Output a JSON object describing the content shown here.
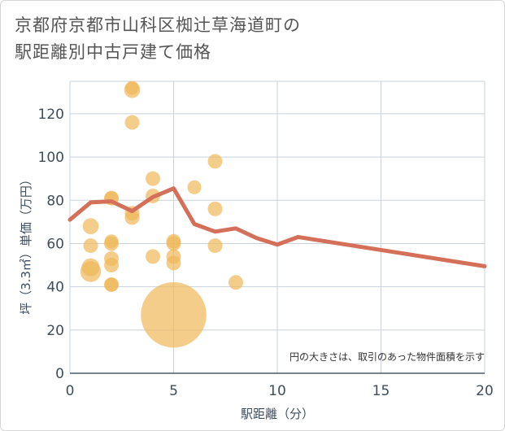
{
  "chart_data": {
    "type": "scatter",
    "title_line1": "京都府京都市山科区椥辻草海道町の",
    "title_line2": "駅距離別中古戸建て価格",
    "xlabel": "駅距離（分）",
    "ylabel": "坪（3.3㎡）単価（万円）",
    "xlim": [
      0,
      20
    ],
    "ylim": [
      0,
      135
    ],
    "xticks": [
      0,
      5,
      10,
      15,
      20
    ],
    "yticks": [
      0,
      20,
      40,
      60,
      80,
      100,
      120
    ],
    "xtick_labels": [
      "0",
      "5",
      "10",
      "15",
      "20"
    ],
    "ytick_labels": [
      "0",
      "20",
      "40",
      "60",
      "80",
      "100",
      "120"
    ],
    "note": "円の大きさは、取引のあった物件面積を示す",
    "scatter_color": "#f0b85a",
    "line_color": "#d4705a",
    "points": [
      {
        "x": 1,
        "y": 47,
        "size": 2
      },
      {
        "x": 1,
        "y": 49,
        "size": 1.5
      },
      {
        "x": 1,
        "y": 59,
        "size": 1
      },
      {
        "x": 1,
        "y": 68,
        "size": 1.2
      },
      {
        "x": 2,
        "y": 41,
        "size": 1
      },
      {
        "x": 2,
        "y": 41,
        "size": 0.9
      },
      {
        "x": 2,
        "y": 50,
        "size": 1
      },
      {
        "x": 2,
        "y": 53,
        "size": 1
      },
      {
        "x": 2,
        "y": 60,
        "size": 1
      },
      {
        "x": 2,
        "y": 61,
        "size": 0.9
      },
      {
        "x": 2,
        "y": 81,
        "size": 1
      },
      {
        "x": 2,
        "y": 81,
        "size": 0.9
      },
      {
        "x": 3,
        "y": 72,
        "size": 1
      },
      {
        "x": 3,
        "y": 74,
        "size": 1
      },
      {
        "x": 3,
        "y": 116,
        "size": 1
      },
      {
        "x": 3,
        "y": 131,
        "size": 1.2
      },
      {
        "x": 3,
        "y": 132,
        "size": 0.9
      },
      {
        "x": 4,
        "y": 54,
        "size": 1
      },
      {
        "x": 4,
        "y": 82,
        "size": 1
      },
      {
        "x": 4,
        "y": 90,
        "size": 1
      },
      {
        "x": 5,
        "y": 27,
        "size": 20
      },
      {
        "x": 5,
        "y": 51,
        "size": 1
      },
      {
        "x": 5,
        "y": 54,
        "size": 1
      },
      {
        "x": 5,
        "y": 60,
        "size": 1
      },
      {
        "x": 5,
        "y": 61,
        "size": 1
      },
      {
        "x": 6,
        "y": 86,
        "size": 0.9
      },
      {
        "x": 7,
        "y": 59,
        "size": 1
      },
      {
        "x": 7,
        "y": 76,
        "size": 1
      },
      {
        "x": 7,
        "y": 98,
        "size": 1
      },
      {
        "x": 8,
        "y": 42,
        "size": 1
      }
    ],
    "line": {
      "x": [
        0,
        1,
        2,
        3,
        4,
        5,
        6,
        7,
        8,
        9,
        10,
        11,
        20
      ],
      "y": [
        71,
        79,
        79.5,
        75,
        81.5,
        85.5,
        69,
        65.5,
        67,
        62.5,
        59.5,
        63,
        49.5
      ]
    }
  }
}
